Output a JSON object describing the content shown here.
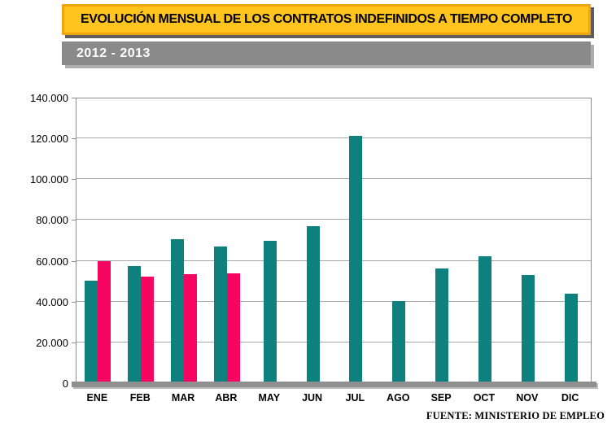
{
  "header": {
    "title": "EVOLUCIÓN MENSUAL DE LOS CONTRATOS INDEFINIDOS A TIEMPO COMPLETO",
    "subtitle": "2012 - 2013"
  },
  "footer": {
    "source": "FUENTE: MINISTERIO DE EMPLEO"
  },
  "colors": {
    "banner_bg": "#FFC41E",
    "banner_border": "#F0A50E",
    "subtitle_bg": "#8A8A8A",
    "series_2012": "#0E807D",
    "series_2013": "#F70560",
    "gridline": "#A8A8A8",
    "plot_border": "#8C8C8C",
    "axis_band": "#8F8F8F"
  },
  "chart_data": {
    "type": "bar",
    "title": "EVOLUCIÓN MENSUAL DE LOS CONTRATOS INDEFINIDOS A TIEMPO COMPLETO",
    "subtitle": "2012 - 2013",
    "categories": [
      "ENE",
      "FEB",
      "MAR",
      "ABR",
      "MAY",
      "JUN",
      "JUL",
      "AGO",
      "SEP",
      "OCT",
      "NOV",
      "DIC"
    ],
    "series": [
      {
        "name": "2012",
        "color": "#0E807D",
        "values": [
          50200,
          57500,
          70800,
          66900,
          69700,
          76900,
          121200,
          40400,
          56400,
          62300,
          53000,
          43800
        ]
      },
      {
        "name": "2013",
        "color": "#F70560",
        "values": [
          59700,
          52400,
          53300,
          54000,
          null,
          null,
          null,
          null,
          null,
          null,
          null,
          null
        ]
      }
    ],
    "ylim": [
      0,
      140000
    ],
    "ytick_step": 20000,
    "yticks": [
      0,
      20000,
      40000,
      60000,
      80000,
      100000,
      120000,
      140000
    ],
    "ytick_labels": [
      "0",
      "20.000",
      "40.000",
      "60.000",
      "80.000",
      "100.000",
      "120.000",
      "140.000"
    ],
    "xlabel": "",
    "ylabel": "",
    "grid": true,
    "legend_position": "none",
    "source": "FUENTE: MINISTERIO DE EMPLEO"
  }
}
